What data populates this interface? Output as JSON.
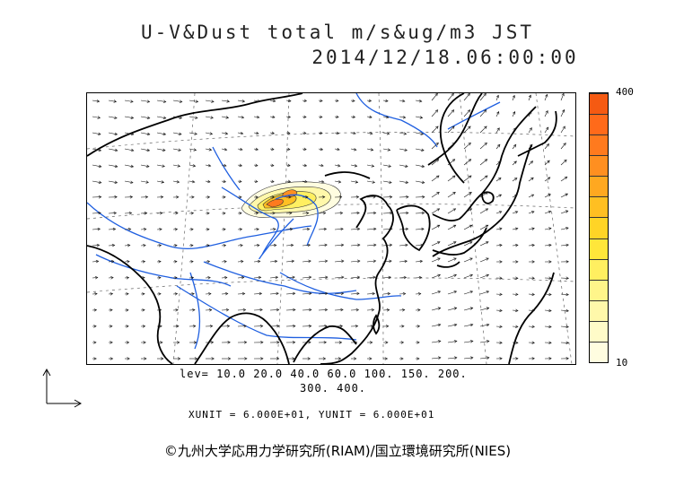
{
  "title_line1": "U-V&Dust total m/s&ug/m3 JST",
  "title_line2": "2014/12/18.06:00:00",
  "colorbar": {
    "max_label": "400",
    "min_label": "10",
    "colors": [
      "#fffde0",
      "#fffbc8",
      "#fff8aa",
      "#fff58a",
      "#ffef60",
      "#ffe63a",
      "#ffd426",
      "#ffbf22",
      "#ffa820",
      "#ff8f20",
      "#ff7a1e",
      "#ff6a1a",
      "#f55a12"
    ]
  },
  "levels_line1": "lev= 10.0 20.0 40.0 60.0 100. 150. 200.",
  "levels_line2": "300. 400.",
  "units": "XUNIT = 6.000E+01, YUNIT = 6.000E+01",
  "credit": "©九州大学応用力学研究所(RIAM)/国立環境研究所(NIES)",
  "colors": {
    "coastline": "#000000",
    "rivers": "#1f5fe0",
    "grid": "#555555",
    "arrows": "#111111"
  },
  "icons": [
    "reference-vector-arrow"
  ]
}
